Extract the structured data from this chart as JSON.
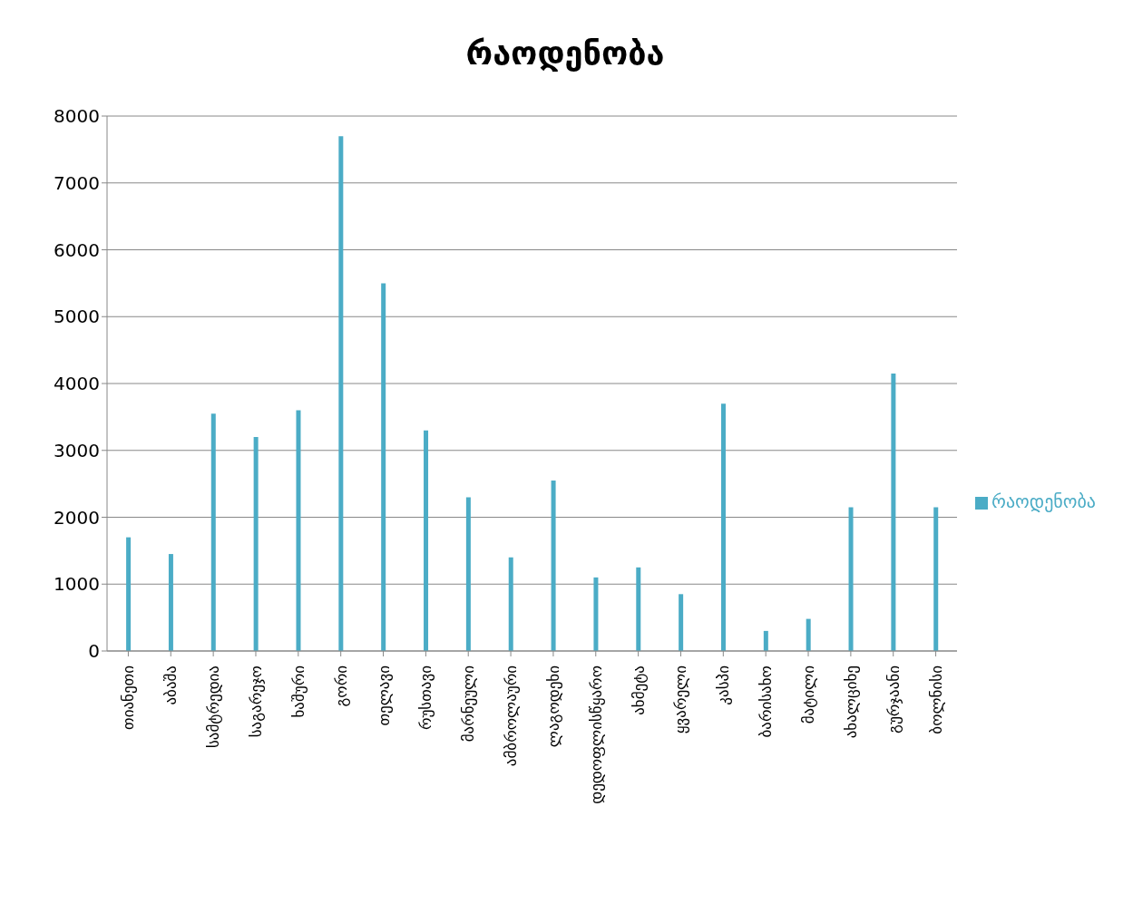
{
  "chart_data": {
    "type": "bar",
    "title": "რაოდენობა",
    "categories": [
      "თიანეთი",
      "აბაშა",
      "სამტრედია",
      "საგარეჯო",
      "ხაშური",
      "გორი",
      "თელავი",
      "რუსთავი",
      "მარნეული",
      "ამბროლაური",
      "ლაგოდეხი",
      "დედოფლისწყარო",
      "ახმეტა",
      "ყვარელი",
      "კასპი",
      "ბარისახო",
      "მატილი",
      "ახალციხე",
      "გურჯაანი",
      "ბოლნისი"
    ],
    "series": [
      {
        "name": "რაოდენობა",
        "color": "#4bacc6",
        "values": [
          1700,
          1450,
          3550,
          3200,
          3600,
          7700,
          5500,
          3300,
          2300,
          1400,
          2550,
          1100,
          1250,
          850,
          3700,
          300,
          480,
          2150,
          4150,
          2150
        ]
      }
    ],
    "ylim": [
      0,
      8000
    ],
    "yticks": [
      0,
      1000,
      2000,
      3000,
      4000,
      5000,
      6000,
      7000,
      8000
    ],
    "grid": "y",
    "legend": "right"
  }
}
